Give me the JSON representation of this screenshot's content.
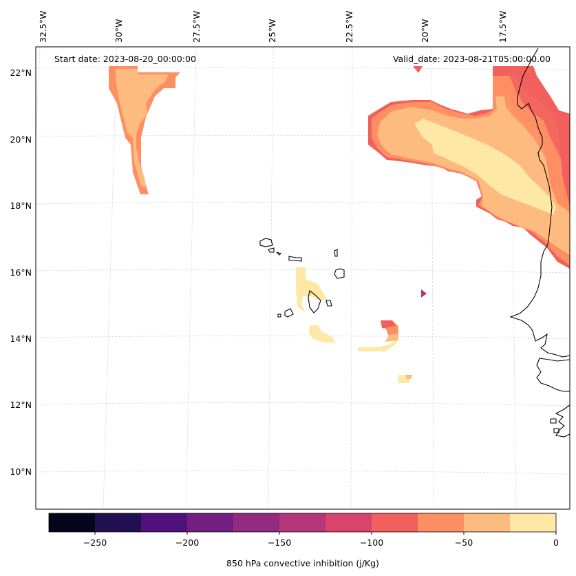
{
  "map": {
    "start_label": "Start date: 2023-08-20_00:00:00",
    "valid_label": "Valid_date: 2023-08-21T05:00:00.00",
    "lon_labels": [
      "32.5°W",
      "30°W",
      "27.5°W",
      "25°W",
      "22.5°W",
      "20°W",
      "17.5°W"
    ],
    "lat_labels": [
      "22°N",
      "20°N",
      "18°N",
      "16°N",
      "14°N",
      "12°N",
      "10°N"
    ]
  },
  "colorbar": {
    "title": "850 hPa convective inhibition (j/Kg)",
    "tick_labels": [
      "−250",
      "−200",
      "−150",
      "−100",
      "−50",
      "0"
    ],
    "colors": [
      "#07051b",
      "#221150",
      "#4f117a",
      "#721f81",
      "#932b80",
      "#b5367a",
      "#d8456c",
      "#f1605d",
      "#fe8f63",
      "#febb80",
      "#fde8a5"
    ]
  },
  "legend_colors": {
    "c_m100": "#f1605d",
    "c_m75": "#fe8f63",
    "c_m50": "#febb80",
    "c_m25": "#fde8a5",
    "c_m125": "#d8456c"
  }
}
